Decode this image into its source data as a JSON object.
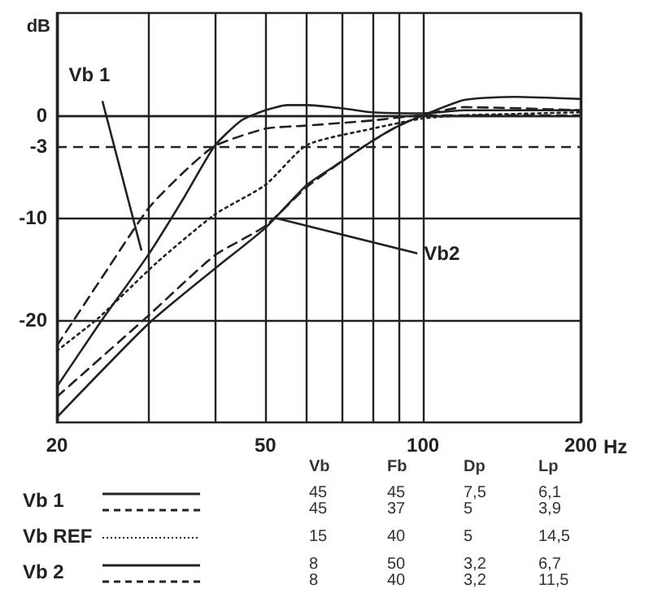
{
  "chart_data": {
    "type": "line",
    "ylabel": "dB",
    "xlabel": "Hz",
    "log": "x",
    "grid": true,
    "legend": "bottom",
    "xlim": [
      20,
      200
    ],
    "xticks": [
      20,
      {
        "value": 30,
        "label": null
      },
      {
        "value": 40,
        "label": null
      },
      50,
      {
        "value": 60,
        "label": null
      },
      {
        "value": 70,
        "label": null
      },
      {
        "value": 80,
        "label": null
      },
      {
        "value": 90,
        "label": null
      },
      100,
      200
    ],
    "ylim": [
      -30,
      10
    ],
    "yticks": [
      -20,
      -10,
      0
    ],
    "ref_lines": [
      {
        "axis": "y",
        "value": -3,
        "label": "-3",
        "line_style": "dashed"
      }
    ],
    "series": [
      {
        "name": "Vb 1",
        "color": "#222222",
        "line_style": "solid",
        "x": [
          20,
          24,
          30,
          35,
          40,
          45,
          50,
          55,
          60,
          70,
          80,
          100,
          120,
          150,
          200
        ],
        "values": [
          -26.5,
          -20.5,
          -13.5,
          -8,
          -3,
          -0.5,
          0.5,
          1,
          1,
          0.7,
          0.3,
          0.2,
          0.5,
          0.5,
          0.5
        ]
      },
      {
        "color": "#222222",
        "line_style": "dashed",
        "x": [
          20,
          25,
          30,
          35,
          40,
          50,
          60,
          80,
          100,
          150,
          200
        ],
        "values": [
          -22.5,
          -15,
          -9,
          -5.5,
          -3,
          -1.3,
          -1,
          -0.5,
          0,
          0,
          0
        ]
      },
      {
        "name": "Vb REF",
        "color": "#222222",
        "line_style": "dotted",
        "x": [
          20,
          24,
          31,
          40,
          50,
          60,
          80,
          100,
          120,
          200
        ],
        "values": [
          -23,
          -19.8,
          -14.4,
          -9.7,
          -6.8,
          -2.9,
          -1.3,
          -0.3,
          0,
          0.3
        ]
      },
      {
        "name": "Vb 2",
        "color": "#222222",
        "line_style": "solid",
        "x": [
          20,
          30,
          40,
          50,
          60,
          70,
          80,
          90,
          100,
          120,
          150,
          200
        ],
        "values": [
          -29.5,
          -20.3,
          -15,
          -11,
          -6.8,
          -4.5,
          -2.5,
          -1,
          0,
          1.5,
          1.8,
          1.6
        ]
      },
      {
        "color": "#222222",
        "line_style": "dashed",
        "x": [
          20,
          30,
          40,
          50,
          60,
          70,
          80,
          90,
          100,
          120,
          200
        ],
        "values": [
          -27.5,
          -19.5,
          -13.7,
          -10.8,
          -7,
          -4.5,
          -2.5,
          -1,
          0,
          0.8,
          0.5
        ]
      }
    ],
    "annotations": [
      {
        "text": "Vb 1",
        "x": 29,
        "y": -13.2
      },
      {
        "text": "Vb2",
        "x": 52,
        "y": -10
      },
      "Vb",
      "Fb",
      "Dp",
      "Lp",
      "45",
      "45",
      "7,5",
      "6,1",
      "45",
      "37",
      "5",
      "3,9",
      "15",
      "40",
      "5",
      "14,5",
      "8",
      "50",
      "3,2",
      "6,7",
      "8",
      "40",
      "3,2",
      "11,5"
    ]
  }
}
